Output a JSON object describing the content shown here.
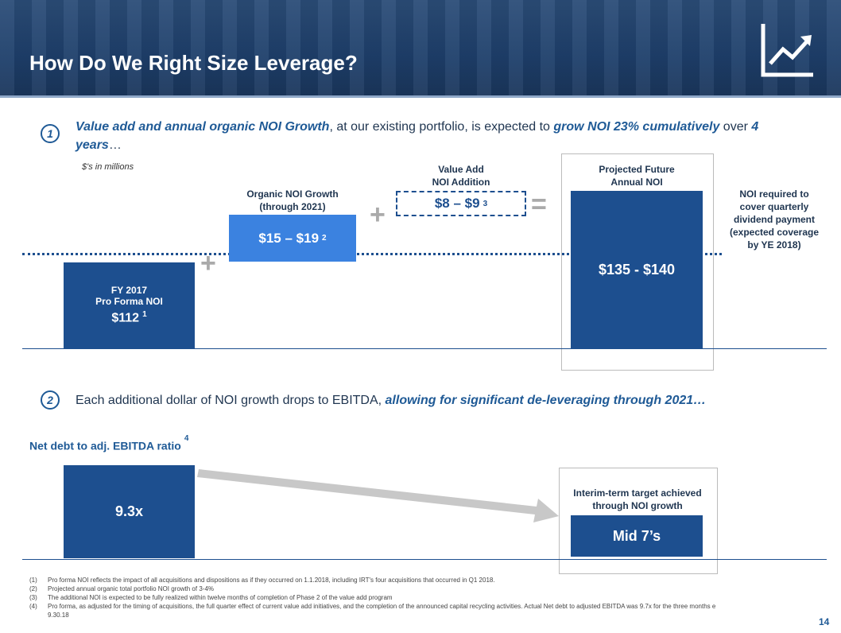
{
  "header": {
    "title": "How Do We Right Size Leverage?"
  },
  "section1": {
    "number": "1",
    "lead": "Value add and annual organic NOI Growth",
    "middle": ", at our existing portfolio, is expected to ",
    "emphasis": "grow NOI 23% cumulatively",
    "connector": " over ",
    "period": "4 years",
    "ending": "…",
    "units_note": "$'s in millions",
    "current": {
      "label_line1": "FY 2017",
      "label_line2": "Pro Forma NOI",
      "amount": "$112",
      "footnote": "1"
    },
    "organic": {
      "label_line1": "Organic NOI Growth",
      "label_line2": "(through 2021)",
      "amount": "$15 – $19",
      "footnote": "2"
    },
    "value_add": {
      "label_line1": "Value Add",
      "label_line2": "NOI Addition",
      "amount": "$8 – $9",
      "footnote": "3"
    },
    "projected": {
      "label_line1": "Projected Future",
      "label_line2": "Annual NOI",
      "amount": "$135 - $140"
    },
    "dividend_note": [
      "NOI required to",
      "cover quarterly",
      "dividend payment",
      "(expected coverage",
      "by YE 2018)"
    ]
  },
  "section2": {
    "number": "2",
    "lead": "Each additional dollar of NOI growth drops to EBITDA, ",
    "emphasis": "allowing for significant de-leveraging through 2021…",
    "ratio_label": "Net debt to adj. EBITDA ratio",
    "ratio_footnote": "4",
    "current_ratio": "9.3x",
    "target_label_line1": "Interim-term target achieved",
    "target_label_line2": "through NOI growth",
    "target_ratio": "Mid 7’s"
  },
  "footnotes": [
    {
      "marker": "(1)",
      "text": "Pro forma NOI reflects the impact of all acquisitions and dispositions as if they occurred on 1.1.2018, including IRT's four acquisitions that occurred in Q1 2018."
    },
    {
      "marker": "(2)",
      "text": "Projected annual organic total portfolio NOI growth of 3-4%"
    },
    {
      "marker": "(3)",
      "text": "The additional NOI is expected to be fully realized within twelve months of completion of Phase 2 of the value add program"
    },
    {
      "marker": "(4)",
      "text": "Pro forma, as adjusted for the timing of acquisitions, the full quarter effect of current value add initiatives, and the completion of the announced capital recycling activities. Actual Net debt to adjusted EBITDA was 9.7x for the three months e",
      "continuation": "9.30.18"
    }
  ],
  "page_number": "14"
}
